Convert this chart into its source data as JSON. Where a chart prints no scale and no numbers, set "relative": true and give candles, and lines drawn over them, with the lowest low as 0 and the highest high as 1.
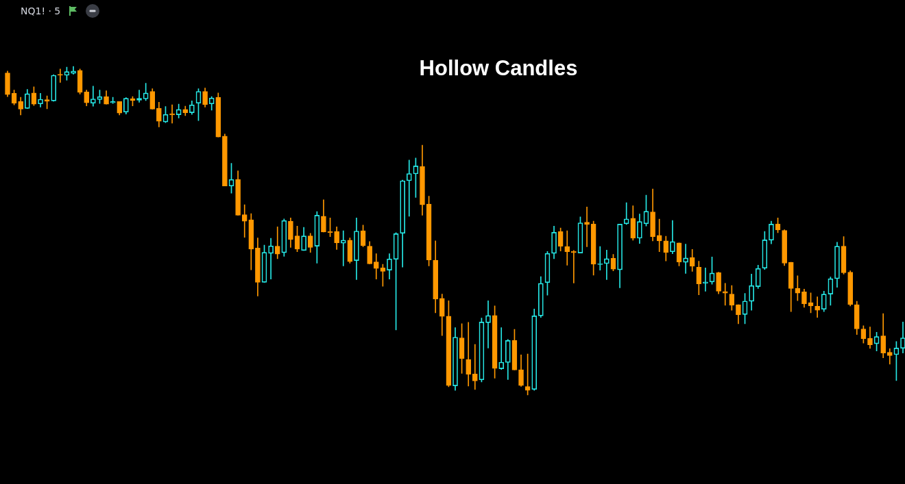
{
  "chart_data": {
    "type": "candlestick",
    "title": "Hollow Candles",
    "subtitle": "NQ1! · 5",
    "relative": true,
    "categories": [
      null,
      null,
      null,
      null,
      null,
      null,
      null,
      null,
      null,
      null,
      null,
      null,
      null,
      null,
      null,
      null,
      null,
      null,
      null,
      null,
      null,
      null,
      null,
      null,
      null,
      null,
      null,
      null,
      null,
      null,
      null,
      null,
      null,
      null,
      null,
      null,
      null,
      null,
      null,
      null,
      null,
      null,
      null,
      null,
      null,
      null,
      null,
      null,
      null,
      null,
      null,
      null,
      null,
      null,
      null,
      null,
      null,
      null,
      null,
      null,
      null,
      null,
      null,
      null,
      null,
      null,
      null,
      null,
      null,
      null,
      null,
      null,
      null,
      null,
      null,
      null,
      null,
      null,
      null,
      null,
      null,
      null,
      null,
      null,
      null,
      null,
      null,
      null,
      null,
      null,
      null,
      null,
      null,
      null,
      null,
      null,
      null,
      null,
      null,
      null,
      null,
      null,
      null,
      null,
      null,
      null,
      null,
      null,
      null,
      null,
      null,
      null,
      null,
      null,
      null,
      null,
      null,
      null,
      null,
      null,
      null,
      null,
      null,
      null,
      null,
      null,
      null,
      null,
      null,
      null,
      null,
      null,
      null,
      null,
      null,
      null,
      null
    ],
    "ohlc": [
      [
        0.98,
        0.986,
        0.908,
        0.914
      ],
      [
        0.918,
        0.928,
        0.883,
        0.888
      ],
      [
        0.893,
        0.906,
        0.852,
        0.87
      ],
      [
        0.872,
        0.93,
        0.872,
        0.917
      ],
      [
        0.919,
        0.938,
        0.881,
        0.885
      ],
      [
        0.886,
        0.918,
        0.876,
        0.9
      ],
      [
        0.899,
        0.91,
        0.871,
        0.894
      ],
      [
        0.895,
        0.975,
        0.894,
        0.973
      ],
      [
        0.976,
        0.992,
        0.951,
        0.973
      ],
      [
        0.973,
        0.998,
        0.958,
        0.984
      ],
      [
        0.979,
        1.0,
        0.976,
        0.986
      ],
      [
        0.988,
        0.992,
        0.916,
        0.921
      ],
      [
        0.922,
        0.928,
        0.88,
        0.889
      ],
      [
        0.888,
        0.94,
        0.879,
        0.901
      ],
      [
        0.899,
        0.928,
        0.887,
        0.908
      ],
      [
        0.908,
        0.926,
        0.885,
        0.885
      ],
      [
        0.889,
        0.906,
        0.887,
        0.893
      ],
      [
        0.893,
        0.893,
        0.852,
        0.858
      ],
      [
        0.861,
        0.905,
        0.855,
        0.903
      ],
      [
        0.902,
        0.908,
        0.88,
        0.896
      ],
      [
        0.897,
        0.928,
        0.891,
        0.903
      ],
      [
        0.901,
        0.949,
        0.896,
        0.919
      ],
      [
        0.924,
        0.932,
        0.87,
        0.87
      ],
      [
        0.872,
        0.891,
        0.816,
        0.833
      ],
      [
        0.831,
        0.878,
        0.829,
        0.854
      ],
      [
        0.856,
        0.883,
        0.827,
        0.852
      ],
      [
        0.853,
        0.885,
        0.843,
        0.869
      ],
      [
        0.869,
        0.879,
        0.85,
        0.859
      ],
      [
        0.859,
        0.895,
        0.854,
        0.883
      ],
      [
        0.888,
        0.932,
        0.835,
        0.924
      ],
      [
        0.924,
        0.934,
        0.876,
        0.884
      ],
      [
        0.886,
        0.908,
        0.867,
        0.904
      ],
      [
        0.906,
        0.919,
        0.785,
        0.785
      ],
      [
        0.788,
        0.794,
        0.636,
        0.636
      ],
      [
        0.636,
        0.705,
        0.614,
        0.656
      ],
      [
        0.656,
        0.682,
        0.547,
        0.547
      ],
      [
        0.549,
        0.579,
        0.48,
        0.529
      ],
      [
        0.533,
        0.552,
        0.381,
        0.444
      ],
      [
        0.447,
        0.478,
        0.301,
        0.343
      ],
      [
        0.343,
        0.456,
        0.343,
        0.434
      ],
      [
        0.431,
        0.477,
        0.353,
        0.454
      ],
      [
        0.453,
        0.512,
        0.415,
        0.429
      ],
      [
        0.433,
        0.536,
        0.422,
        0.531
      ],
      [
        0.529,
        0.539,
        0.449,
        0.473
      ],
      [
        0.484,
        0.514,
        0.436,
        0.444
      ],
      [
        0.44,
        0.51,
        0.44,
        0.484
      ],
      [
        0.484,
        0.492,
        0.434,
        0.449
      ],
      [
        0.453,
        0.558,
        0.401,
        0.547
      ],
      [
        0.544,
        0.594,
        0.496,
        0.496
      ],
      [
        0.497,
        0.539,
        0.482,
        0.494
      ],
      [
        0.498,
        0.512,
        0.443,
        0.463
      ],
      [
        0.462,
        0.5,
        0.393,
        0.471
      ],
      [
        0.471,
        0.478,
        0.401,
        0.406
      ],
      [
        0.409,
        0.539,
        0.351,
        0.499
      ],
      [
        0.5,
        0.517,
        0.451,
        0.455
      ],
      [
        0.453,
        0.467,
        0.399,
        0.399
      ],
      [
        0.405,
        0.43,
        0.353,
        0.385
      ],
      [
        0.387,
        0.398,
        0.331,
        0.376
      ],
      [
        0.38,
        0.43,
        0.353,
        0.414
      ],
      [
        0.413,
        0.494,
        0.198,
        0.491
      ],
      [
        0.492,
        0.654,
        0.389,
        0.652
      ],
      [
        0.652,
        0.715,
        0.544,
        0.674
      ],
      [
        0.673,
        0.721,
        0.601,
        0.697
      ],
      [
        0.695,
        0.76,
        0.547,
        0.579
      ],
      [
        0.581,
        0.605,
        0.393,
        0.411
      ],
      [
        0.41,
        0.469,
        0.25,
        0.292
      ],
      [
        0.294,
        0.307,
        0.181,
        0.239
      ],
      [
        0.24,
        0.287,
        0.025,
        0.029
      ],
      [
        0.028,
        0.205,
        0.014,
        0.176
      ],
      [
        0.174,
        0.217,
        0.066,
        0.111
      ],
      [
        0.108,
        0.221,
        0.027,
        0.063
      ],
      [
        0.064,
        0.154,
        0.017,
        0.043
      ],
      [
        0.046,
        0.234,
        0.04,
        0.222
      ],
      [
        0.22,
        0.287,
        0.143,
        0.242
      ],
      [
        0.242,
        0.271,
        0.051,
        0.081
      ],
      [
        0.08,
        0.205,
        0.078,
        0.1
      ],
      [
        0.099,
        0.169,
        0.047,
        0.166
      ],
      [
        0.166,
        0.2,
        0.076,
        0.076
      ],
      [
        0.077,
        0.122,
        0.026,
        0.029
      ],
      [
        0.026,
        0.125,
        0,
        0.014
      ],
      [
        0.017,
        0.262,
        0.014,
        0.241
      ],
      [
        0.241,
        0.36,
        0.236,
        0.34
      ],
      [
        0.342,
        0.437,
        0.304,
        0.431
      ],
      [
        0.431,
        0.514,
        0.415,
        0.495
      ],
      [
        0.497,
        0.508,
        0.438,
        0.453
      ],
      [
        0.452,
        0.5,
        0.395,
        0.436
      ],
      [
        0.437,
        0.44,
        0.341,
        0.433
      ],
      [
        0.432,
        0.542,
        0.432,
        0.524
      ],
      [
        0.526,
        0.572,
        0.451,
        0.519
      ],
      [
        0.52,
        0.529,
        0.365,
        0.398
      ],
      [
        0.397,
        0.452,
        0.38,
        0.4
      ],
      [
        0.4,
        0.441,
        0.351,
        0.415
      ],
      [
        0.416,
        0.428,
        0.378,
        0.383
      ],
      [
        0.381,
        0.52,
        0.326,
        0.52
      ],
      [
        0.521,
        0.585,
        0.519,
        0.536
      ],
      [
        0.538,
        0.576,
        0.471,
        0.477
      ],
      [
        0.477,
        0.551,
        0.461,
        0.528
      ],
      [
        0.521,
        0.608,
        0.514,
        0.559
      ],
      [
        0.557,
        0.627,
        0.469,
        0.482
      ],
      [
        0.486,
        0.535,
        0.436,
        0.469
      ],
      [
        0.469,
        0.483,
        0.408,
        0.434
      ],
      [
        0.436,
        0.531,
        0.43,
        0.467
      ],
      [
        0.463,
        0.463,
        0.393,
        0.405
      ],
      [
        0.404,
        0.459,
        0.37,
        0.417
      ],
      [
        0.418,
        0.443,
        0.376,
        0.392
      ],
      [
        0.389,
        0.407,
        0.305,
        0.338
      ],
      [
        0.34,
        0.387,
        0.316,
        0.344
      ],
      [
        0.344,
        0.42,
        0.337,
        0.371
      ],
      [
        0.372,
        0.374,
        0.308,
        0.316
      ],
      [
        0.315,
        0.34,
        0.273,
        0.31
      ],
      [
        0.307,
        0.333,
        0.258,
        0.273
      ],
      [
        0.275,
        0.275,
        0.217,
        0.244
      ],
      [
        0.245,
        0.309,
        0.217,
        0.286
      ],
      [
        0.285,
        0.368,
        0.258,
        0.333
      ],
      [
        0.33,
        0.395,
        0.324,
        0.385
      ],
      [
        0.386,
        0.498,
        0.382,
        0.472
      ],
      [
        0.471,
        0.529,
        0.46,
        0.52
      ],
      [
        0.52,
        0.539,
        0.494,
        0.502
      ],
      [
        0.501,
        0.503,
        0.394,
        0.401
      ],
      [
        0.404,
        0.404,
        0.254,
        0.324
      ],
      [
        0.325,
        0.363,
        0.287,
        0.31
      ],
      [
        0.314,
        0.322,
        0.267,
        0.277
      ],
      [
        0.281,
        0.311,
        0.25,
        0.271
      ],
      [
        0.27,
        0.299,
        0.236,
        0.258
      ],
      [
        0.261,
        0.316,
        0.254,
        0.307
      ],
      [
        0.307,
        0.359,
        0.273,
        0.354
      ],
      [
        0.354,
        0.465,
        0.328,
        0.453
      ],
      [
        0.453,
        0.482,
        0.368,
        0.372
      ],
      [
        0.374,
        0.378,
        0.271,
        0.275
      ],
      [
        0.275,
        0.285,
        0.184,
        0.201
      ],
      [
        0.201,
        0.211,
        0.158,
        0.171
      ],
      [
        0.172,
        0.207,
        0.142,
        0.153
      ],
      [
        0.156,
        0.191,
        0.134,
        0.178
      ],
      [
        0.18,
        0.248,
        0.113,
        0.128
      ],
      [
        0.13,
        0.141,
        0.094,
        0.12
      ],
      [
        0.123,
        0.163,
        0.044,
        0.143
      ],
      [
        0.142,
        0.222,
        0.128,
        0.174
      ]
    ],
    "colors": [
      "#ff9800",
      "#ff9800",
      "#ff9800",
      "#26e8e6",
      "#ff9800",
      "#26e8e6",
      "#ff9800",
      "#26e8e6",
      "#ff9800",
      "#26e8e6",
      "#26e8e6",
      "#ff9800",
      "#ff9800",
      "#26e8e6",
      "#26e8e6",
      "#ff9800",
      "#26e8e6",
      "#ff9800",
      "#26e8e6",
      "#ff9800",
      "#26e8e6",
      "#26e8e6",
      "#ff9800",
      "#ff9800",
      "#26e8e6",
      "#ff9800",
      "#26e8e6",
      "#ff9800",
      "#26e8e6",
      "#26e8e6",
      "#ff9800",
      "#26e8e6",
      "#ff9800",
      "#ff9800",
      "#26e8e6",
      "#ff9800",
      "#ff9800",
      "#ff9800",
      "#ff9800",
      "#26e8e6",
      "#26e8e6",
      "#ff9800",
      "#26e8e6",
      "#ff9800",
      "#ff9800",
      "#26e8e6",
      "#ff9800",
      "#26e8e6",
      "#ff9800",
      "#ff9800",
      "#ff9800",
      "#26e8e6",
      "#ff9800",
      "#26e8e6",
      "#ff9800",
      "#ff9800",
      "#ff9800",
      "#ff9800",
      "#26e8e6",
      "#26e8e6",
      "#26e8e6",
      "#26e8e6",
      "#26e8e6",
      "#ff9800",
      "#ff9800",
      "#ff9800",
      "#ff9800",
      "#ff9800",
      "#26e8e6",
      "#ff9800",
      "#ff9800",
      "#ff9800",
      "#26e8e6",
      "#26e8e6",
      "#ff9800",
      "#26e8e6",
      "#26e8e6",
      "#ff9800",
      "#ff9800",
      "#ff9800",
      "#26e8e6",
      "#26e8e6",
      "#26e8e6",
      "#26e8e6",
      "#ff9800",
      "#ff9800",
      "#ff9800",
      "#26e8e6",
      "#ff9800",
      "#ff9800",
      "#26e8e6",
      "#26e8e6",
      "#ff9800",
      "#26e8e6",
      "#26e8e6",
      "#ff9800",
      "#26e8e6",
      "#26e8e6",
      "#ff9800",
      "#ff9800",
      "#ff9800",
      "#26e8e6",
      "#ff9800",
      "#26e8e6",
      "#ff9800",
      "#ff9800",
      "#26e8e6",
      "#26e8e6",
      "#ff9800",
      "#ff9800",
      "#ff9800",
      "#ff9800",
      "#26e8e6",
      "#26e8e6",
      "#26e8e6",
      "#26e8e6",
      "#26e8e6",
      "#ff9800",
      "#ff9800",
      "#ff9800",
      "#ff9800",
      "#ff9800",
      "#ff9800",
      "#ff9800",
      "#26e8e6",
      "#26e8e6",
      "#26e8e6",
      "#ff9800",
      "#ff9800",
      "#ff9800",
      "#ff9800",
      "#ff9800",
      "#26e8e6",
      "#ff9800",
      "#ff9800",
      "#26e8e6",
      "#26e8e6"
    ]
  }
}
